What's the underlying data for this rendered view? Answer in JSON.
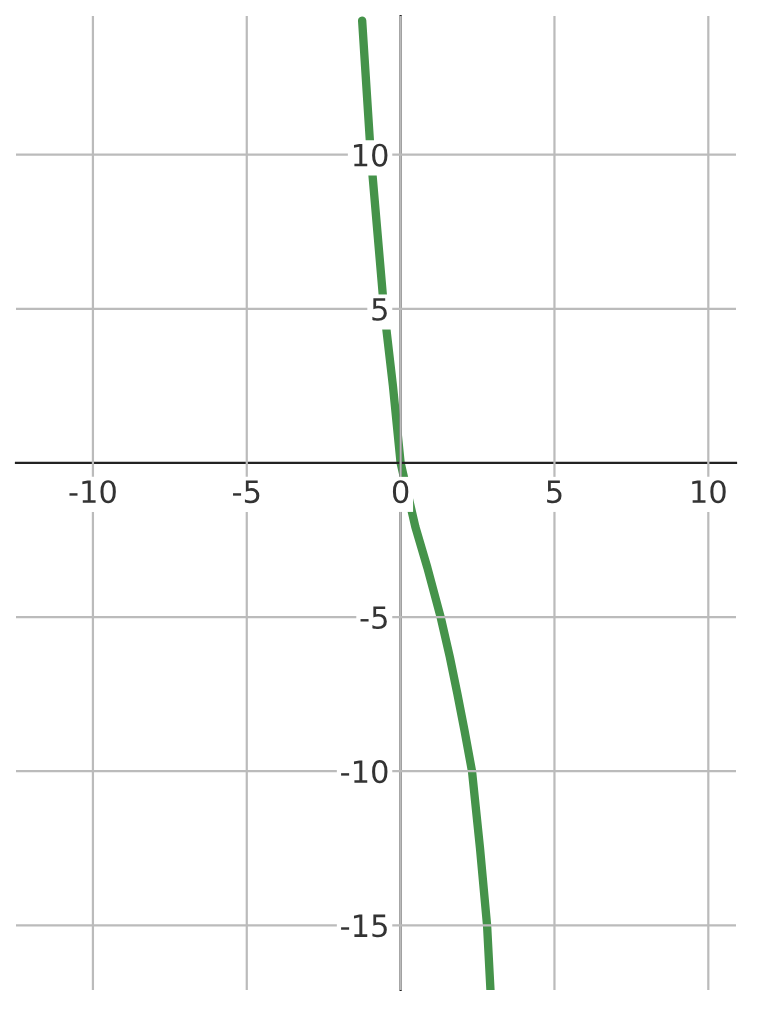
{
  "chart_data": {
    "type": "line",
    "series": [
      {
        "color": "#45934a",
        "x": [
          -1.25,
          -0.97,
          -0.54,
          -0.25,
          0,
          0.48,
          0.87,
          1.3,
          1.6,
          1.84,
          2.08,
          2.32,
          2.58,
          2.81,
          2.92
        ],
        "values": [
          14.35,
          10,
          5,
          2.5,
          0,
          -2.08,
          -3.4,
          -5,
          -6.3,
          -7.47,
          -8.7,
          -10,
          -12.5,
          -15,
          -17.1
        ]
      }
    ],
    "xlim": [
      -12.5,
      10.9
    ],
    "ylim": [
      -17.1,
      14.5
    ],
    "xticks": [
      -10,
      -5,
      0,
      5,
      10
    ],
    "yticks": [
      -15,
      -10,
      -5,
      5,
      10
    ],
    "grid": true,
    "legend": false
  }
}
